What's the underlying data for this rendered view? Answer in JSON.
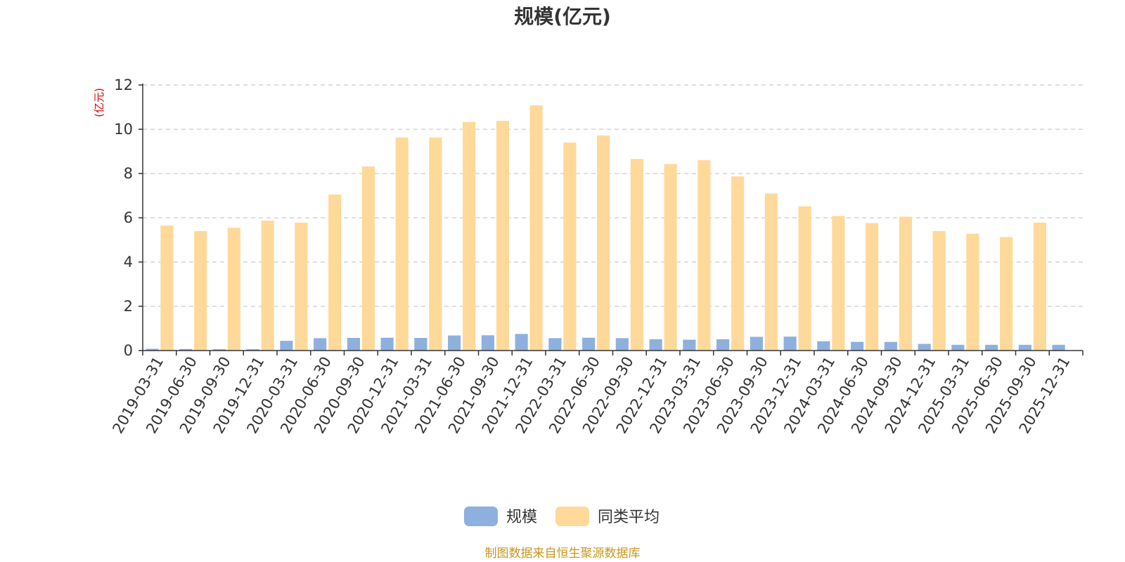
{
  "chart_data": {
    "type": "bar",
    "title": "规模(亿元)",
    "ylabel": "(亿元)",
    "ylim": [
      0,
      12
    ],
    "yticks": [
      "0",
      "2",
      "4",
      "6",
      "8",
      "10",
      "12"
    ],
    "grid": true,
    "legend_position": "bottom",
    "categories": [
      "2019-03-31",
      "2019-06-30",
      "2019-09-30",
      "2019-12-31",
      "2020-03-31",
      "2020-06-30",
      "2020-09-30",
      "2020-12-31",
      "2021-03-31",
      "2021-06-30",
      "2021-09-30",
      "2021-12-31",
      "2022-03-31",
      "2022-06-30",
      "2022-09-30",
      "2022-12-31",
      "2023-03-31",
      "2023-06-30",
      "2023-09-30",
      "2023-12-31",
      "2024-03-31",
      "2024-06-30",
      "2024-09-30",
      "2024-12-31",
      "2025-03-31",
      "2025-06-30",
      "2025-09-30",
      "2025-12-31"
    ],
    "series": [
      {
        "name": "规模",
        "color": "#8eb0dd",
        "values": [
          0.08,
          0.07,
          0.06,
          0.06,
          0.44,
          0.56,
          0.57,
          0.58,
          0.57,
          0.68,
          0.69,
          0.75,
          0.56,
          0.58,
          0.56,
          0.51,
          0.49,
          0.51,
          0.62,
          0.63,
          0.42,
          0.39,
          0.39,
          0.3,
          0.26,
          0.26,
          0.26,
          0.26
        ]
      },
      {
        "name": "同类平均",
        "color": "#ffd99a",
        "values": [
          5.65,
          5.4,
          5.55,
          5.87,
          5.78,
          7.05,
          8.32,
          9.63,
          9.63,
          10.33,
          10.38,
          11.08,
          9.4,
          9.72,
          8.66,
          8.43,
          8.6,
          7.87,
          7.1,
          6.52,
          6.08,
          5.76,
          6.05,
          5.4,
          5.28,
          5.13,
          5.78,
          null
        ]
      }
    ],
    "source_note": "制图数据来自恒生聚源数据库"
  }
}
